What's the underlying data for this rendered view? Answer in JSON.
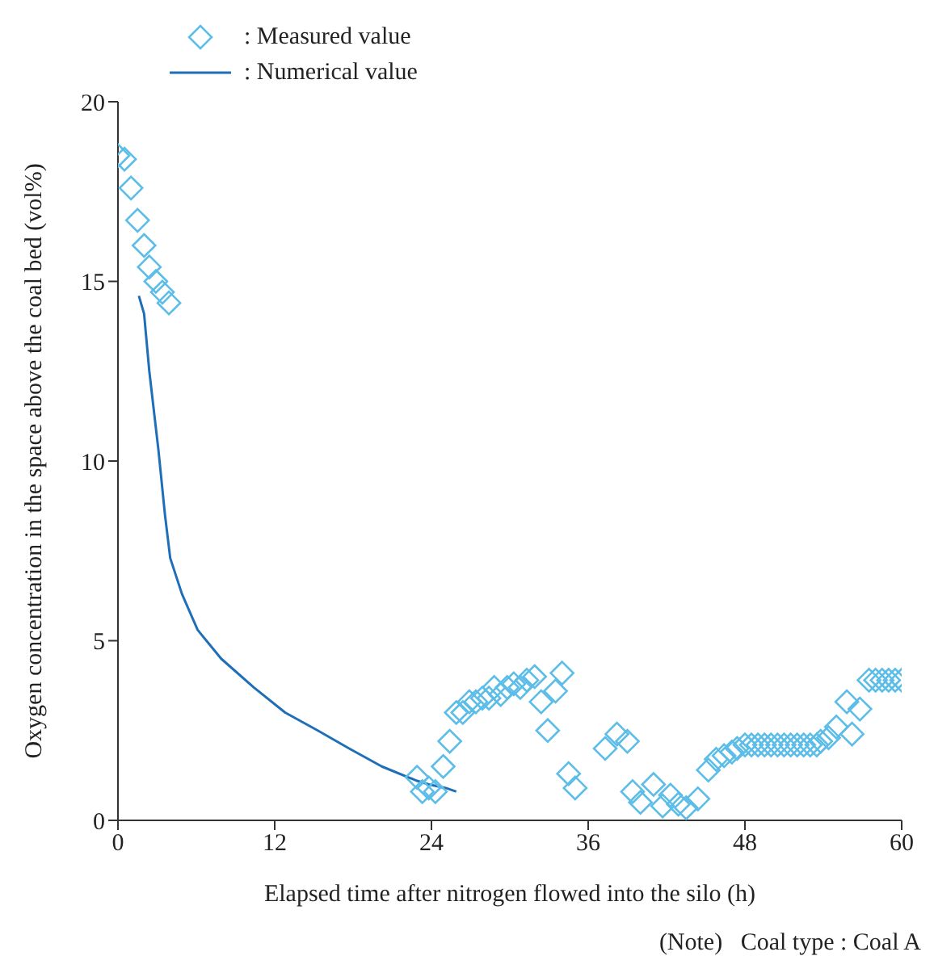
{
  "chart_data": {
    "type": "scatter",
    "xlabel": "Elapsed time after nitrogen flowed into the silo  (h)",
    "ylabel": "Oxygen concentration in the space above the coal bed  (vol%)",
    "xlim": [
      0,
      60
    ],
    "xticks": [
      0,
      12,
      24,
      36,
      48,
      60
    ],
    "ylim": [
      0,
      20
    ],
    "yticks": [
      0,
      5,
      10,
      15,
      20
    ],
    "grid": false,
    "legend": "top left",
    "annotations": [
      "(Note)   Coal type : Coal A"
    ],
    "series": [
      {
        "name": ": Measured value",
        "type": "scatter",
        "marker": "diamond",
        "color": "#5bbde8",
        "x": [
          0,
          0.5,
          1,
          1.5,
          2,
          2.4,
          2.9,
          3.4,
          3.9,
          22.9,
          23.3,
          23.8,
          24.3,
          24.9,
          25.4,
          25.9,
          26.4,
          26.9,
          27.4,
          27.9,
          28.4,
          28.8,
          29.3,
          29.8,
          30.3,
          30.8,
          31.3,
          31.9,
          32.4,
          32.9,
          33.5,
          34,
          34.5,
          35,
          37.3,
          38.2,
          39,
          39.4,
          40,
          41,
          41.7,
          42.3,
          42.9,
          43.5,
          44.4,
          45.2,
          45.8,
          46.4,
          47,
          47.4,
          48,
          48.5,
          49,
          49.5,
          50,
          50.5,
          51,
          51.5,
          52,
          52.5,
          53,
          53.5,
          53.8,
          54.4,
          55,
          55.8,
          56.2,
          56.8,
          57.5,
          58,
          58.5,
          59,
          59.5,
          60
        ],
        "values": [
          18.5,
          18.4,
          17.6,
          16.7,
          16,
          15.4,
          15,
          14.7,
          14.4,
          1.2,
          0.8,
          0.9,
          0.8,
          1.5,
          2.2,
          3,
          3,
          3.3,
          3.3,
          3.4,
          3.4,
          3.7,
          3.5,
          3.7,
          3.8,
          3.7,
          3.9,
          4,
          3.3,
          2.5,
          3.6,
          4.1,
          1.3,
          0.9,
          2,
          2.4,
          2.2,
          0.8,
          0.5,
          1,
          0.4,
          0.7,
          0.45,
          0.35,
          0.6,
          1.4,
          1.7,
          1.8,
          1.9,
          2,
          2.1,
          2.1,
          2.1,
          2.1,
          2.1,
          2.1,
          2.1,
          2.1,
          2.1,
          2.1,
          2.1,
          2.1,
          2.2,
          2.3,
          2.6,
          3.3,
          2.4,
          3.1,
          3.9,
          3.9,
          3.9,
          3.9,
          3.9,
          3.9
        ]
      },
      {
        "name": ": Numerical value",
        "type": "line",
        "marker": "none",
        "line_style": "solid",
        "color": "#1f6fb8",
        "x": [
          1.6,
          2,
          2.4,
          3.1,
          3.6,
          4,
          4.9,
          6.1,
          7.9,
          10.4,
          12.8,
          15.3,
          17.7,
          20.2,
          22.9,
          23.8,
          25.1,
          25.9
        ],
        "values": [
          14.6,
          14.1,
          12.5,
          10.3,
          8.5,
          7.3,
          6.3,
          5.3,
          4.5,
          3.7,
          3,
          2.5,
          2,
          1.5,
          1.1,
          1,
          0.9,
          0.8
        ]
      }
    ]
  }
}
